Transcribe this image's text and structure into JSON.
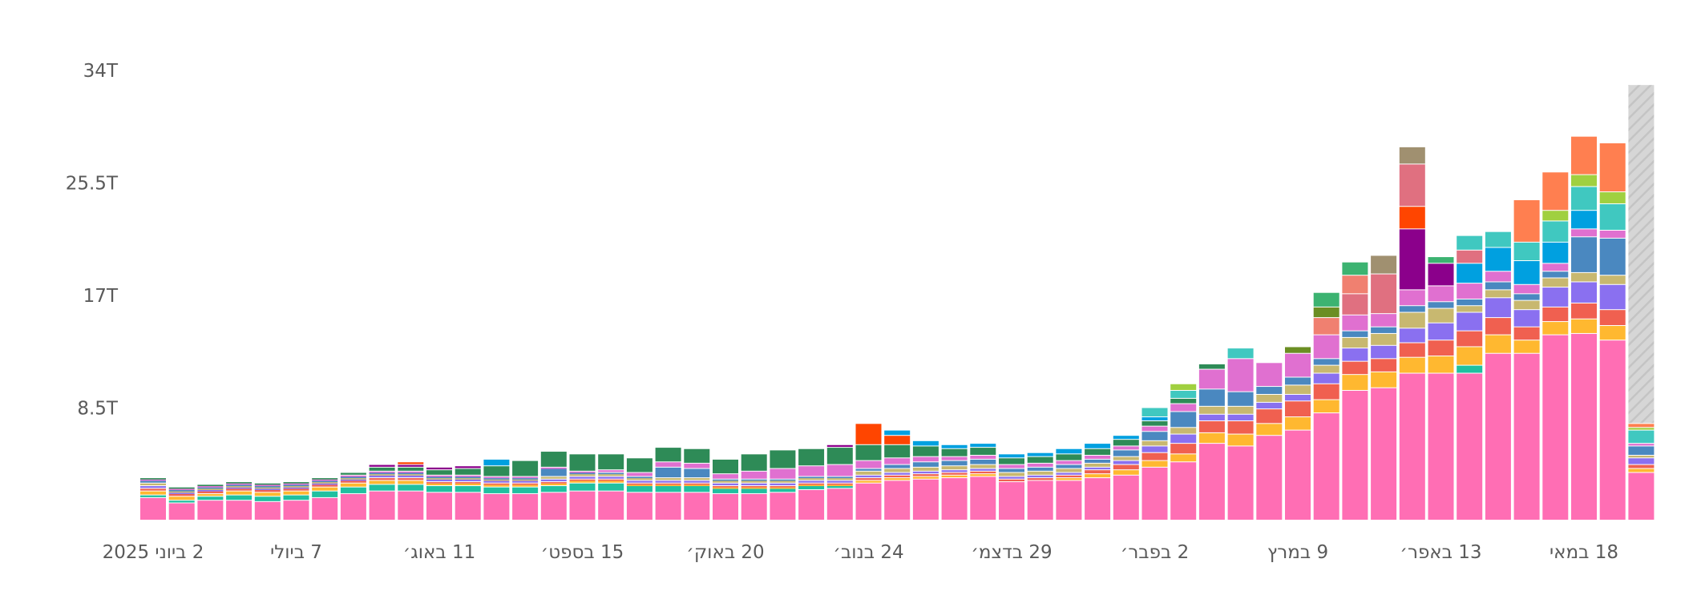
{
  "chart_data": {
    "type": "bar",
    "stacked": true,
    "grid": false,
    "legend": "none",
    "ylim": [
      0,
      34
    ],
    "y_unit": "T",
    "y_ticks": [
      {
        "value": 8.5,
        "label": "8.5T"
      },
      {
        "value": 17,
        "label": "17T"
      },
      {
        "value": 25.5,
        "label": "25.5T"
      },
      {
        "value": 34,
        "label": "34T"
      }
    ],
    "x_ticks": [
      {
        "index": 0,
        "label": "2 ביוני 2025"
      },
      {
        "index": 5,
        "label": "7 ביולי"
      },
      {
        "index": 10,
        "label": "11 באוג׳"
      },
      {
        "index": 15,
        "label": "15 בספט׳"
      },
      {
        "index": 20,
        "label": "20 באוק׳"
      },
      {
        "index": 25,
        "label": "24 בנוב׳"
      },
      {
        "index": 30,
        "label": "29 בדצמ׳"
      },
      {
        "index": 35,
        "label": "2 בפבר׳"
      },
      {
        "index": 40,
        "label": "9 במרץ"
      },
      {
        "index": 45,
        "label": "13 באפר׳"
      },
      {
        "index": 50,
        "label": "18 במאי"
      }
    ],
    "dominant_series_color": "#ff6eb4",
    "palette": [
      "#ff6eb4",
      "#20c0a0",
      "#ffb830",
      "#f06050",
      "#8a70f0",
      "#c8b870",
      "#4a88c0",
      "#e070d0",
      "#2e8b57",
      "#8b008b",
      "#ff4500",
      "#00a0e0",
      "#e07080",
      "#f08070",
      "#40c8c0",
      "#6b8e23",
      "#a0d040",
      "#3cb371",
      "#a09070",
      "#ff7f50"
    ],
    "series": [
      {
        "values": [
          1.7,
          1.3,
          1.5,
          1.5,
          1.4,
          1.5,
          1.7,
          2.0,
          2.2,
          2.2,
          2.1,
          2.1,
          2.0,
          2.0,
          2.1,
          2.2,
          2.2,
          2.1,
          2.1,
          2.1,
          2.0,
          2.0,
          2.1,
          2.3,
          2.4,
          2.8,
          3.0,
          3.1,
          3.2,
          3.3,
          2.9,
          3.0,
          3.0,
          3.2,
          3.4,
          4.0,
          4.4,
          5.8,
          5.6,
          6.4,
          6.8,
          8.1,
          9.8,
          10.0,
          11.1,
          11.1,
          11.1,
          12.6,
          12.6,
          14.0,
          14.1,
          13.6,
          3.6
        ]
      },
      {
        "values": [
          0.2,
          0.2,
          0.3,
          0.4,
          0.4,
          0.4,
          0.5,
          0.5,
          0.5,
          0.5,
          0.5,
          0.5,
          0.5,
          0.5,
          0.5,
          0.6,
          0.6,
          0.5,
          0.5,
          0.5,
          0.4,
          0.4,
          0.3,
          0.3,
          0.2,
          0.0,
          0.0,
          0.0,
          0.0,
          0.0,
          0.0,
          0.0,
          0.0,
          0.0,
          0.0,
          0.0,
          0.0,
          0.0,
          0.0,
          0.0,
          0.0,
          0.0,
          0.0,
          0.0,
          0.0,
          0.0,
          0.6,
          0.0,
          0.0,
          0.0,
          0.0,
          0.0,
          0.0
        ]
      },
      {
        "values": [
          0.3,
          0.3,
          0.2,
          0.3,
          0.3,
          0.3,
          0.3,
          0.3,
          0.3,
          0.3,
          0.2,
          0.2,
          0.2,
          0.2,
          0.2,
          0.2,
          0.2,
          0.1,
          0.1,
          0.1,
          0.1,
          0.1,
          0.1,
          0.1,
          0.1,
          0.2,
          0.2,
          0.2,
          0.2,
          0.2,
          0.0,
          0.0,
          0.2,
          0.3,
          0.4,
          0.5,
          0.6,
          0.8,
          0.9,
          0.9,
          1.0,
          1.0,
          1.2,
          1.2,
          1.2,
          1.3,
          1.4,
          1.4,
          1.0,
          1.0,
          1.1,
          1.1,
          0.3
        ]
      },
      {
        "values": [
          0.2,
          0.2,
          0.2,
          0.2,
          0.2,
          0.2,
          0.2,
          0.2,
          0.2,
          0.2,
          0.1,
          0.1,
          0.1,
          0.1,
          0.1,
          0.1,
          0.1,
          0.1,
          0.1,
          0.1,
          0.1,
          0.1,
          0.1,
          0.1,
          0.1,
          0.2,
          0.2,
          0.2,
          0.2,
          0.2,
          0.2,
          0.2,
          0.2,
          0.3,
          0.4,
          0.6,
          0.8,
          0.9,
          1.0,
          1.1,
          1.2,
          1.2,
          1.0,
          1.0,
          1.1,
          1.2,
          1.2,
          1.3,
          1.0,
          1.1,
          1.2,
          1.2,
          0.3
        ]
      },
      {
        "values": [
          0.2,
          0.1,
          0.1,
          0.1,
          0.1,
          0.1,
          0.1,
          0.1,
          0.2,
          0.2,
          0.2,
          0.2,
          0.2,
          0.2,
          0.2,
          0.2,
          0.2,
          0.2,
          0.2,
          0.2,
          0.2,
          0.2,
          0.2,
          0.2,
          0.2,
          0.2,
          0.2,
          0.2,
          0.2,
          0.2,
          0.2,
          0.2,
          0.2,
          0.2,
          0.3,
          0.5,
          0.7,
          0.5,
          0.5,
          0.5,
          0.5,
          0.8,
          1.0,
          1.0,
          1.1,
          1.3,
          1.4,
          1.5,
          1.3,
          1.5,
          1.6,
          1.9,
          0.5
        ]
      },
      {
        "values": [
          0.2,
          0.1,
          0.1,
          0.1,
          0.1,
          0.1,
          0.1,
          0.1,
          0.1,
          0.1,
          0.1,
          0.1,
          0.1,
          0.1,
          0.2,
          0.2,
          0.2,
          0.2,
          0.2,
          0.2,
          0.2,
          0.2,
          0.2,
          0.2,
          0.2,
          0.3,
          0.3,
          0.3,
          0.3,
          0.3,
          0.3,
          0.3,
          0.3,
          0.3,
          0.3,
          0.4,
          0.5,
          0.6,
          0.6,
          0.6,
          0.7,
          0.6,
          0.8,
          0.9,
          1.2,
          1.1,
          0.5,
          0.6,
          0.7,
          0.7,
          0.7,
          0.7,
          0.2
        ]
      },
      {
        "values": [
          0.2,
          0.1,
          0.1,
          0.1,
          0.1,
          0.1,
          0.1,
          0.1,
          0.1,
          0.1,
          0.1,
          0.1,
          0.1,
          0.1,
          0.6,
          0.1,
          0.1,
          0.1,
          0.8,
          0.7,
          0.1,
          0.1,
          0.1,
          0.1,
          0.1,
          0.2,
          0.3,
          0.4,
          0.4,
          0.4,
          0.3,
          0.3,
          0.3,
          0.3,
          0.5,
          0.7,
          1.2,
          1.3,
          1.1,
          0.6,
          0.6,
          0.5,
          0.5,
          0.5,
          0.5,
          0.5,
          0.5,
          0.6,
          0.5,
          0.5,
          2.7,
          2.8,
          0.7
        ]
      },
      {
        "values": [
          0.1,
          0.1,
          0.1,
          0.1,
          0.1,
          0.1,
          0.1,
          0.1,
          0.1,
          0.1,
          0.1,
          0.1,
          0.1,
          0.1,
          0.1,
          0.1,
          0.2,
          0.3,
          0.4,
          0.4,
          0.4,
          0.6,
          0.8,
          0.8,
          0.9,
          0.6,
          0.5,
          0.4,
          0.3,
          0.3,
          0.3,
          0.3,
          0.3,
          0.3,
          0.3,
          0.4,
          0.6,
          1.5,
          2.5,
          1.8,
          1.8,
          1.8,
          1.2,
          1.0,
          1.2,
          1.2,
          1.2,
          0.8,
          0.7,
          0.6,
          0.6,
          0.6,
          0.2
        ]
      },
      {
        "values": [
          0.1,
          0.1,
          0.1,
          0.1,
          0.1,
          0.1,
          0.1,
          0.2,
          0.3,
          0.3,
          0.4,
          0.5,
          0.8,
          1.2,
          1.2,
          1.3,
          1.2,
          1.1,
          1.1,
          1.1,
          1.1,
          1.3,
          1.4,
          1.3,
          1.3,
          1.2,
          1.0,
          0.8,
          0.6,
          0.6,
          0.5,
          0.5,
          0.5,
          0.5,
          0.5,
          0.4,
          0.4,
          0.4,
          0.0,
          0.0,
          0.0,
          0.0,
          0.0,
          0.0,
          0.0,
          0.0,
          0.0,
          0.0,
          0.0,
          0.0,
          0.0,
          0.0,
          0.0
        ]
      },
      {
        "values": [
          0.0,
          0.0,
          0.0,
          0.0,
          0.0,
          0.0,
          0.0,
          0.0,
          0.2,
          0.2,
          0.2,
          0.2,
          0.0,
          0.0,
          0.0,
          0.0,
          0.0,
          0.0,
          0.0,
          0.0,
          0.0,
          0.0,
          0.0,
          0.0,
          0.2,
          0.0,
          0.0,
          0.0,
          0.0,
          0.0,
          0.0,
          0.0,
          0.0,
          0.0,
          0.0,
          0.0,
          0.0,
          0.0,
          0.0,
          0.0,
          0.0,
          0.0,
          0.0,
          0.0,
          4.6,
          1.7,
          0.0,
          0.0,
          0.0,
          0.0,
          0.0,
          0.0,
          0.0
        ]
      },
      {
        "values": [
          0.0,
          0.0,
          0.0,
          0.0,
          0.0,
          0.0,
          0.0,
          0.0,
          0.0,
          0.2,
          0.0,
          0.0,
          0.0,
          0.0,
          0.0,
          0.0,
          0.0,
          0.0,
          0.0,
          0.0,
          0.0,
          0.0,
          0.0,
          0.0,
          0.0,
          1.6,
          0.7,
          0.0,
          0.0,
          0.0,
          0.0,
          0.0,
          0.0,
          0.0,
          0.0,
          0.0,
          0.0,
          0.0,
          0.0,
          0.0,
          0.0,
          0.0,
          0.0,
          0.0,
          1.7,
          0.0,
          0.0,
          0.0,
          0.0,
          0.0,
          0.0,
          0.0,
          0.0
        ]
      },
      {
        "values": [
          0.0,
          0.0,
          0.0,
          0.0,
          0.0,
          0.0,
          0.0,
          0.0,
          0.0,
          0.0,
          0.0,
          0.0,
          0.5,
          0.0,
          0.0,
          0.0,
          0.0,
          0.0,
          0.0,
          0.0,
          0.0,
          0.0,
          0.0,
          0.0,
          0.0,
          0.0,
          0.4,
          0.4,
          0.3,
          0.3,
          0.3,
          0.3,
          0.4,
          0.4,
          0.3,
          0.3,
          0.0,
          0.0,
          0.0,
          0.0,
          0.0,
          0.0,
          0.0,
          0.0,
          0.0,
          0.0,
          1.5,
          1.8,
          1.8,
          1.6,
          1.4,
          0.0,
          0.0
        ]
      },
      {
        "values": [
          0.0,
          0.0,
          0.0,
          0.0,
          0.0,
          0.0,
          0.0,
          0.0,
          0.0,
          0.0,
          0.0,
          0.0,
          0.0,
          0.0,
          0.0,
          0.0,
          0.0,
          0.0,
          0.0,
          0.0,
          0.0,
          0.0,
          0.0,
          0.0,
          0.0,
          0.0,
          0.0,
          0.0,
          0.0,
          0.0,
          0.0,
          0.0,
          0.0,
          0.0,
          0.0,
          0.0,
          0.0,
          0.0,
          0.0,
          0.0,
          0.0,
          0.0,
          1.6,
          3.0,
          3.2,
          0.0,
          1.0,
          0.0,
          0.0,
          0.0,
          0.0,
          0.0,
          0.0
        ]
      },
      {
        "values": [
          0.0,
          0.0,
          0.0,
          0.0,
          0.0,
          0.0,
          0.0,
          0.0,
          0.0,
          0.0,
          0.0,
          0.0,
          0.0,
          0.0,
          0.0,
          0.0,
          0.0,
          0.0,
          0.0,
          0.0,
          0.0,
          0.0,
          0.0,
          0.0,
          0.0,
          0.0,
          0.0,
          0.0,
          0.0,
          0.0,
          0.0,
          0.0,
          0.0,
          0.0,
          0.0,
          0.0,
          0.0,
          0.0,
          0.0,
          0.0,
          0.0,
          1.3,
          1.4,
          0.0,
          0.0,
          0.0,
          0.0,
          0.0,
          0.0,
          0.0,
          0.0,
          0.0,
          0.0
        ]
      },
      {
        "values": [
          0.0,
          0.0,
          0.0,
          0.0,
          0.0,
          0.0,
          0.0,
          0.0,
          0.0,
          0.0,
          0.0,
          0.0,
          0.0,
          0.0,
          0.0,
          0.0,
          0.0,
          0.0,
          0.0,
          0.0,
          0.0,
          0.0,
          0.0,
          0.0,
          0.0,
          0.0,
          0.0,
          0.0,
          0.0,
          0.0,
          0.0,
          0.0,
          0.0,
          0.0,
          0.0,
          0.7,
          0.6,
          0.0,
          0.8,
          0.0,
          0.0,
          0.0,
          0.0,
          0.0,
          0.0,
          0.0,
          1.1,
          1.2,
          1.4,
          1.6,
          1.8,
          2.0,
          1.0
        ]
      },
      {
        "values": [
          0.0,
          0.0,
          0.0,
          0.0,
          0.0,
          0.0,
          0.0,
          0.0,
          0.0,
          0.0,
          0.0,
          0.0,
          0.0,
          0.0,
          0.0,
          0.0,
          0.0,
          0.0,
          0.0,
          0.0,
          0.0,
          0.0,
          0.0,
          0.0,
          0.0,
          0.0,
          0.0,
          0.0,
          0.0,
          0.0,
          0.0,
          0.0,
          0.0,
          0.0,
          0.0,
          0.0,
          0.0,
          0.0,
          0.0,
          0.0,
          0.5,
          0.8,
          0.0,
          0.0,
          0.0,
          0.0,
          0.0,
          0.0,
          0.0,
          0.0,
          0.0,
          0.0,
          0.0
        ]
      },
      {
        "values": [
          0.0,
          0.0,
          0.0,
          0.0,
          0.0,
          0.0,
          0.0,
          0.0,
          0.0,
          0.0,
          0.0,
          0.0,
          0.0,
          0.0,
          0.0,
          0.0,
          0.0,
          0.0,
          0.0,
          0.0,
          0.0,
          0.0,
          0.0,
          0.0,
          0.0,
          0.0,
          0.0,
          0.0,
          0.0,
          0.0,
          0.0,
          0.0,
          0.0,
          0.0,
          0.0,
          0.0,
          0.5,
          0.0,
          0.0,
          0.0,
          0.0,
          0.0,
          0.0,
          0.0,
          0.0,
          0.0,
          0.0,
          0.0,
          0.0,
          0.8,
          0.9,
          0.9,
          0.2
        ]
      },
      {
        "values": [
          0.0,
          0.0,
          0.0,
          0.0,
          0.0,
          0.0,
          0.0,
          0.0,
          0.0,
          0.0,
          0.0,
          0.0,
          0.0,
          0.0,
          0.0,
          0.0,
          0.0,
          0.0,
          0.0,
          0.0,
          0.0,
          0.0,
          0.0,
          0.0,
          0.0,
          0.0,
          0.0,
          0.0,
          0.0,
          0.0,
          0.0,
          0.0,
          0.0,
          0.0,
          0.0,
          0.0,
          0.0,
          0.0,
          0.0,
          0.0,
          0.0,
          1.1,
          1.0,
          0.0,
          0.0,
          0.5,
          0.0,
          0.0,
          0.0,
          0.0,
          0.0,
          0.0,
          0.0
        ]
      },
      {
        "values": [
          0.0,
          0.0,
          0.0,
          0.0,
          0.0,
          0.0,
          0.0,
          0.0,
          0.0,
          0.0,
          0.0,
          0.0,
          0.0,
          0.0,
          0.0,
          0.0,
          0.0,
          0.0,
          0.0,
          0.0,
          0.0,
          0.0,
          0.0,
          0.0,
          0.0,
          0.0,
          0.0,
          0.0,
          0.0,
          0.0,
          0.0,
          0.0,
          0.0,
          0.0,
          0.0,
          0.0,
          0.0,
          0.0,
          0.0,
          0.0,
          0.0,
          0.0,
          0.0,
          1.4,
          1.3,
          0.0,
          0.0,
          0.0,
          0.0,
          0.0,
          0.0,
          0.0,
          0.0
        ]
      },
      {
        "values": [
          0.0,
          0.0,
          0.0,
          0.0,
          0.0,
          0.0,
          0.0,
          0.0,
          0.0,
          0.0,
          0.0,
          0.0,
          0.0,
          0.0,
          0.0,
          0.0,
          0.0,
          0.0,
          0.0,
          0.0,
          0.0,
          0.0,
          0.0,
          0.0,
          0.0,
          0.0,
          0.0,
          0.0,
          0.0,
          0.0,
          0.0,
          0.0,
          0.0,
          0.0,
          0.0,
          0.0,
          0.0,
          0.0,
          0.0,
          0.0,
          0.0,
          0.0,
          0.0,
          0.0,
          0.0,
          0.0,
          0.0,
          0.0,
          3.2,
          2.9,
          2.9,
          3.7,
          0.3
        ]
      }
    ],
    "highlighted_bar": {
      "index": 52,
      "total": 32.9,
      "fill": "hatched-gray"
    }
  }
}
